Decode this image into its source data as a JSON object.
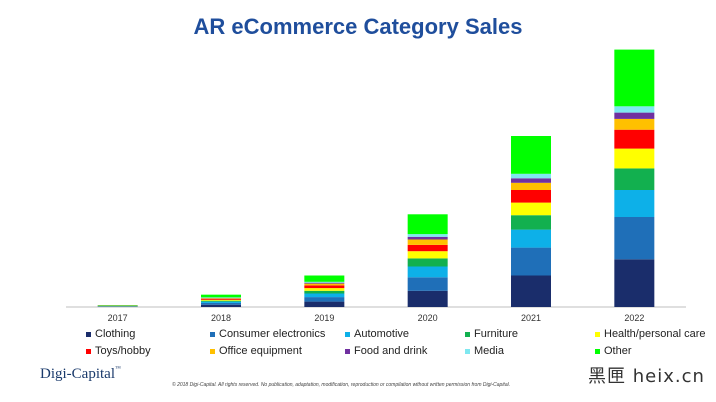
{
  "chart_data": {
    "type": "bar",
    "stacked": true,
    "title": "AR eCommerce Category Sales",
    "categories": [
      "2017",
      "2018",
      "2019",
      "2020",
      "2021",
      "2022"
    ],
    "series": [
      {
        "name": "Clothing",
        "color": "#1a2d6b",
        "values": [
          0.3,
          2.5,
          6,
          18,
          35,
          53
        ]
      },
      {
        "name": "Consumer electronics",
        "color": "#1f6fb8",
        "values": [
          0.3,
          2,
          5,
          15,
          31,
          47
        ]
      },
      {
        "name": "Automotive",
        "color": "#0db0e8",
        "values": [
          0.2,
          1.5,
          4,
          12,
          20,
          30
        ]
      },
      {
        "name": "Furniture",
        "color": "#12b04f",
        "values": [
          0.2,
          1,
          3,
          9,
          16,
          24
        ]
      },
      {
        "name": "Health/personal care",
        "color": "#ffff00",
        "values": [
          0.2,
          1,
          3,
          8,
          14,
          22
        ]
      },
      {
        "name": "Toys/hobby",
        "color": "#ff0000",
        "values": [
          0.2,
          1,
          3,
          7,
          14,
          21
        ]
      },
      {
        "name": "Office equipment",
        "color": "#ffc000",
        "values": [
          0.1,
          0.7,
          2,
          6,
          8,
          12
        ]
      },
      {
        "name": "Food and drink",
        "color": "#7030a0",
        "values": [
          0.1,
          0.5,
          1,
          3,
          5,
          7
        ]
      },
      {
        "name": "Media",
        "color": "#7fe8f0",
        "values": [
          0.1,
          0.5,
          1,
          3,
          5,
          7
        ]
      },
      {
        "name": "Other",
        "color": "#00ff00",
        "values": [
          0.5,
          3,
          7,
          22,
          42,
          63
        ]
      }
    ],
    "ylim": [
      0,
      290
    ],
    "grid": false,
    "legend": "bottom"
  },
  "footer": {
    "logo": "Digi-Capital",
    "logo_mark": "™",
    "copyright": "© 2018 Digi-Capital. All rights reserved. No publication, adaptation, modification, reproduction or compilation without written permission from Digi-Capital.",
    "watermark": "黑匣 heix.cn"
  }
}
